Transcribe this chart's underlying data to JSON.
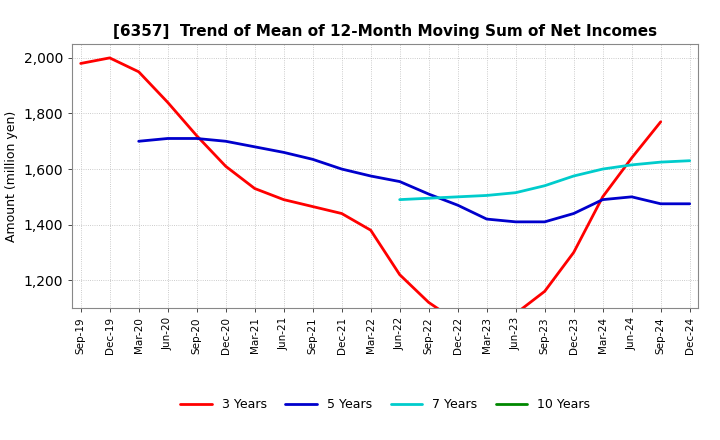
{
  "title": "[6357]  Trend of Mean of 12-Month Moving Sum of Net Incomes",
  "ylabel": "Amount (million yen)",
  "background_color": "#ffffff",
  "grid_color": "#bbbbbb",
  "ylim": [
    1100,
    2050
  ],
  "yticks": [
    1200,
    1400,
    1600,
    1800,
    2000
  ],
  "x_labels": [
    "Sep-19",
    "Dec-19",
    "Mar-20",
    "Jun-20",
    "Sep-20",
    "Dec-20",
    "Mar-21",
    "Jun-21",
    "Sep-21",
    "Dec-21",
    "Mar-22",
    "Jun-22",
    "Sep-22",
    "Dec-22",
    "Mar-23",
    "Jun-23",
    "Sep-23",
    "Dec-23",
    "Mar-24",
    "Jun-24",
    "Sep-24",
    "Dec-24"
  ],
  "y_3yr": [
    1980,
    2000,
    1950,
    1840,
    1720,
    1610,
    1530,
    1490,
    1465,
    1440,
    1380,
    1220,
    1120,
    1050,
    1055,
    1080,
    1160,
    1300,
    1500,
    1640,
    1770,
    null
  ],
  "y_5yr": [
    null,
    null,
    1700,
    1710,
    1710,
    1700,
    1680,
    1660,
    1635,
    1600,
    1575,
    1555,
    1510,
    1470,
    1420,
    1410,
    1410,
    1440,
    1490,
    1500,
    1475,
    1475
  ],
  "y_7yr": [
    null,
    null,
    null,
    null,
    null,
    null,
    null,
    null,
    null,
    null,
    null,
    1490,
    1495,
    1500,
    1505,
    1515,
    1540,
    1575,
    1600,
    1615,
    1625,
    1630
  ],
  "y_10yr": [
    null,
    null,
    null,
    null,
    null,
    null,
    null,
    null,
    null,
    null,
    null,
    null,
    null,
    null,
    null,
    null,
    null,
    null,
    null,
    null,
    null,
    null
  ],
  "color_3yr": "#ff0000",
  "color_5yr": "#0000cc",
  "color_7yr": "#00cccc",
  "color_10yr": "#008800",
  "linewidth": 2.0
}
